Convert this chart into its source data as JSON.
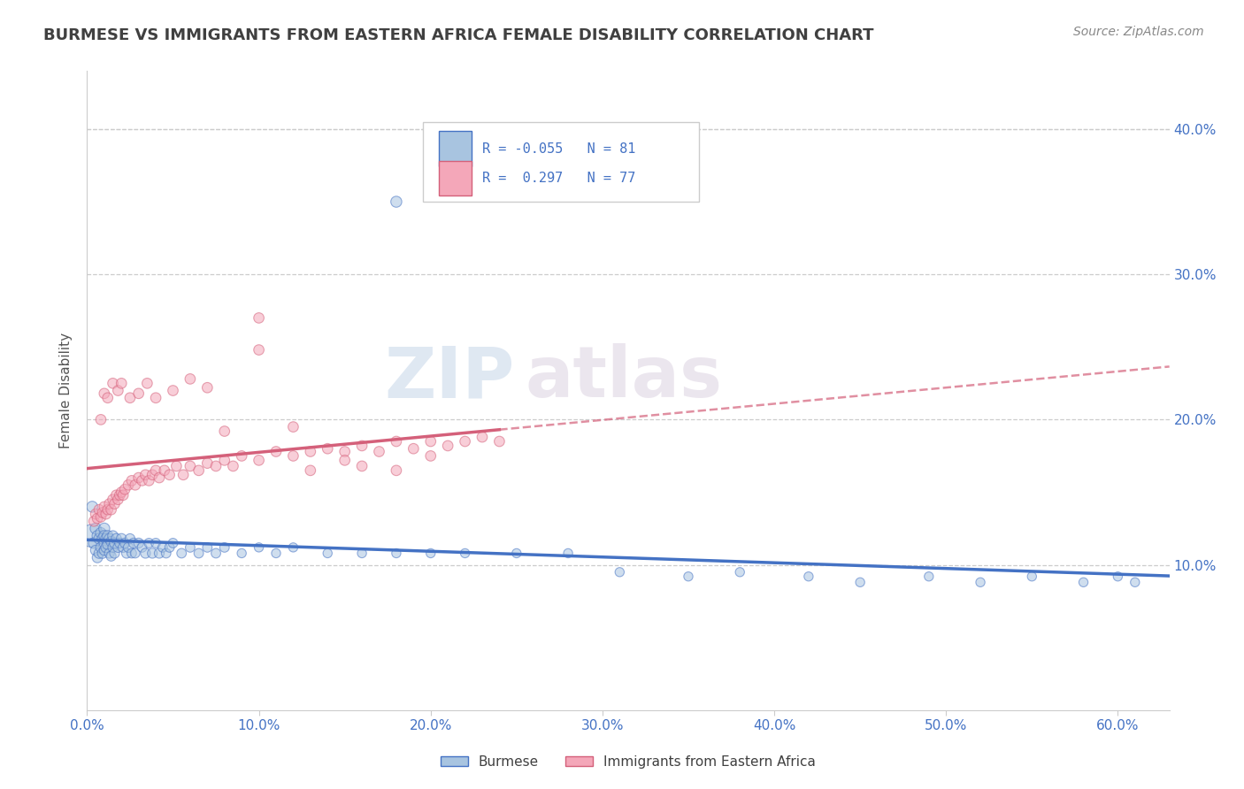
{
  "title": "BURMESE VS IMMIGRANTS FROM EASTERN AFRICA FEMALE DISABILITY CORRELATION CHART",
  "source": "Source: ZipAtlas.com",
  "xlabel_ticks": [
    "0.0%",
    "10.0%",
    "20.0%",
    "30.0%",
    "40.0%",
    "50.0%",
    "60.0%"
  ],
  "ylabel_ticks": [
    "10.0%",
    "20.0%",
    "30.0%",
    "40.0%"
  ],
  "xlim": [
    0.0,
    0.63
  ],
  "ylim": [
    0.0,
    0.44
  ],
  "ylabel": "Female Disability",
  "burmese_R": -0.055,
  "burmese_N": 81,
  "eastafrica_R": 0.297,
  "eastafrica_N": 77,
  "color_burmese": "#a8c4e0",
  "color_burmese_line": "#4472c4",
  "color_eastafrica": "#f4a7b9",
  "color_eastafrica_line": "#d4607a",
  "color_title": "#404040",
  "color_source": "#888888",
  "color_legend_text": "#4472c4",
  "color_axis_labels": "#4472c4",
  "watermark_zip": "ZIP",
  "watermark_atlas": "atlas",
  "burmese_x": [
    0.003,
    0.004,
    0.005,
    0.005,
    0.006,
    0.006,
    0.007,
    0.007,
    0.008,
    0.008,
    0.009,
    0.009,
    0.01,
    0.01,
    0.01,
    0.01,
    0.011,
    0.011,
    0.012,
    0.012,
    0.013,
    0.013,
    0.014,
    0.014,
    0.015,
    0.015,
    0.016,
    0.016,
    0.017,
    0.018,
    0.019,
    0.02,
    0.021,
    0.022,
    0.023,
    0.024,
    0.025,
    0.026,
    0.027,
    0.028,
    0.03,
    0.032,
    0.034,
    0.036,
    0.038,
    0.04,
    0.042,
    0.044,
    0.046,
    0.048,
    0.05,
    0.055,
    0.06,
    0.065,
    0.07,
    0.075,
    0.08,
    0.09,
    0.1,
    0.11,
    0.12,
    0.14,
    0.16,
    0.18,
    0.2,
    0.22,
    0.25,
    0.28,
    0.31,
    0.35,
    0.38,
    0.42,
    0.45,
    0.49,
    0.52,
    0.55,
    0.58,
    0.6,
    0.61,
    0.003,
    0.18
  ],
  "burmese_y": [
    0.12,
    0.115,
    0.125,
    0.11,
    0.12,
    0.105,
    0.118,
    0.108,
    0.122,
    0.112,
    0.118,
    0.108,
    0.125,
    0.12,
    0.115,
    0.11,
    0.118,
    0.112,
    0.12,
    0.114,
    0.118,
    0.108,
    0.116,
    0.106,
    0.12,
    0.112,
    0.115,
    0.108,
    0.118,
    0.112,
    0.115,
    0.118,
    0.112,
    0.115,
    0.108,
    0.112,
    0.118,
    0.108,
    0.115,
    0.108,
    0.115,
    0.112,
    0.108,
    0.115,
    0.108,
    0.115,
    0.108,
    0.112,
    0.108,
    0.112,
    0.115,
    0.108,
    0.112,
    0.108,
    0.112,
    0.108,
    0.112,
    0.108,
    0.112,
    0.108,
    0.112,
    0.108,
    0.108,
    0.108,
    0.108,
    0.108,
    0.108,
    0.108,
    0.095,
    0.092,
    0.095,
    0.092,
    0.088,
    0.092,
    0.088,
    0.092,
    0.088,
    0.092,
    0.088,
    0.14,
    0.35
  ],
  "burmese_sizes": [
    350,
    80,
    80,
    70,
    75,
    70,
    75,
    70,
    75,
    70,
    75,
    70,
    80,
    75,
    70,
    65,
    75,
    70,
    75,
    70,
    70,
    65,
    70,
    65,
    70,
    65,
    70,
    65,
    70,
    65,
    65,
    70,
    65,
    65,
    65,
    65,
    65,
    60,
    65,
    60,
    65,
    60,
    65,
    60,
    65,
    60,
    65,
    60,
    60,
    60,
    60,
    60,
    60,
    60,
    60,
    60,
    60,
    55,
    55,
    55,
    55,
    55,
    55,
    55,
    55,
    55,
    55,
    55,
    55,
    55,
    55,
    55,
    55,
    55,
    55,
    55,
    55,
    55,
    55,
    80,
    80
  ],
  "eastafrica_x": [
    0.004,
    0.005,
    0.006,
    0.007,
    0.008,
    0.009,
    0.01,
    0.011,
    0.012,
    0.013,
    0.014,
    0.015,
    0.016,
    0.017,
    0.018,
    0.019,
    0.02,
    0.021,
    0.022,
    0.024,
    0.026,
    0.028,
    0.03,
    0.032,
    0.034,
    0.036,
    0.038,
    0.04,
    0.042,
    0.045,
    0.048,
    0.052,
    0.056,
    0.06,
    0.065,
    0.07,
    0.075,
    0.08,
    0.085,
    0.09,
    0.1,
    0.11,
    0.12,
    0.13,
    0.14,
    0.15,
    0.16,
    0.17,
    0.18,
    0.19,
    0.2,
    0.21,
    0.22,
    0.23,
    0.24,
    0.008,
    0.01,
    0.012,
    0.015,
    0.018,
    0.02,
    0.025,
    0.03,
    0.035,
    0.04,
    0.05,
    0.06,
    0.07,
    0.08,
    0.1,
    0.12,
    0.15,
    0.18,
    0.1,
    0.13,
    0.16,
    0.2
  ],
  "eastafrica_y": [
    0.13,
    0.135,
    0.132,
    0.138,
    0.133,
    0.136,
    0.14,
    0.135,
    0.138,
    0.142,
    0.138,
    0.145,
    0.142,
    0.148,
    0.145,
    0.148,
    0.15,
    0.148,
    0.152,
    0.155,
    0.158,
    0.155,
    0.16,
    0.158,
    0.162,
    0.158,
    0.162,
    0.165,
    0.16,
    0.165,
    0.162,
    0.168,
    0.162,
    0.168,
    0.165,
    0.17,
    0.168,
    0.172,
    0.168,
    0.175,
    0.172,
    0.178,
    0.175,
    0.178,
    0.18,
    0.178,
    0.182,
    0.178,
    0.185,
    0.18,
    0.185,
    0.182,
    0.185,
    0.188,
    0.185,
    0.2,
    0.218,
    0.215,
    0.225,
    0.22,
    0.225,
    0.215,
    0.218,
    0.225,
    0.215,
    0.22,
    0.228,
    0.222,
    0.192,
    0.27,
    0.195,
    0.172,
    0.165,
    0.248,
    0.165,
    0.168,
    0.175
  ],
  "eastafrica_sizes": [
    70,
    70,
    70,
    70,
    70,
    70,
    70,
    70,
    70,
    70,
    70,
    70,
    70,
    70,
    70,
    70,
    70,
    70,
    70,
    70,
    70,
    70,
    70,
    70,
    70,
    70,
    70,
    70,
    70,
    70,
    70,
    70,
    70,
    70,
    70,
    70,
    70,
    70,
    70,
    70,
    70,
    70,
    70,
    70,
    70,
    70,
    70,
    70,
    70,
    70,
    70,
    70,
    70,
    70,
    70,
    70,
    70,
    70,
    70,
    70,
    70,
    70,
    70,
    70,
    70,
    70,
    70,
    70,
    70,
    70,
    70,
    70,
    70,
    70,
    70,
    70,
    70
  ]
}
